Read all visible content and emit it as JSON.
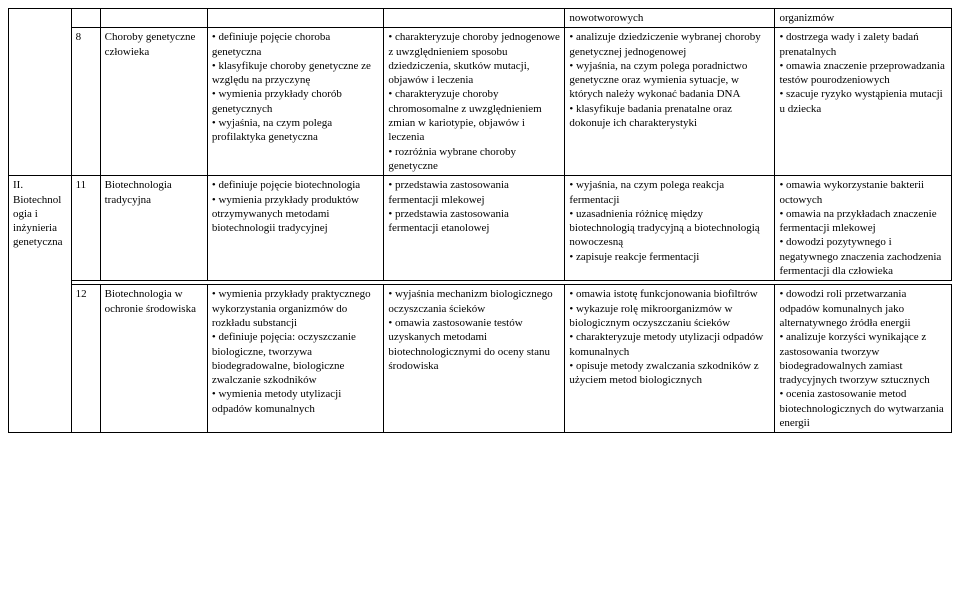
{
  "header": {
    "c3": "nowotworowych",
    "c4": "organizmów"
  },
  "row8": {
    "num": "8",
    "topic": "Choroby genetyczne człowieka",
    "c1": "• definiuje pojęcie choroba genetyczna\n• klasyfikuje choroby genetyczne ze względu na przyczynę\n• wymienia przykłady chorób genetycznych\n• wyjaśnia, na czym polega profilaktyka genetyczna",
    "c2": "• charakteryzuje choroby jednogenowe z uwzględnieniem sposobu dziedziczenia, skutków mutacji, objawów i leczenia\n• charakteryzuje choroby chromosomalne z uwzględnieniem zmian w kariotypie, objawów i leczenia\n• rozróżnia wybrane choroby genetyczne",
    "c3": "• analizuje dziedziczenie wybranej choroby genetycznej jednogenowej\n• wyjaśnia, na czym polega poradnictwo genetyczne oraz wymienia sytuacje, w których należy wykonać badania DNA\n• klasyfikuje badania prenatalne oraz dokonuje ich charakterystyki",
    "c4": "• dostrzega wady i zalety badań prenatalnych\n• omawia znaczenie przeprowadzania testów pourodzeniowych\n• szacuje ryzyko wystąpienia mutacji u dziecka"
  },
  "row11": {
    "section": "II. Biotechnologia i inżynieria genetyczna",
    "num": "11",
    "topic": "Biotechnologia tradycyjna",
    "c1": "• definiuje pojęcie biotechnologia\n• wymienia przykłady produktów otrzymywanych metodami biotechnologii tradycyjnej",
    "c2": "• przedstawia zastosowania fermentacji mlekowej\n• przedstawia zastosowania fermentacji etanolowej",
    "c3": "• wyjaśnia, na czym polega reakcja fermentacji\n• uzasadnienia różnicę między biotechnologią tradycyjną a biotechnologią nowoczesną\n• zapisuje reakcje fermentacji",
    "c4": "• omawia wykorzystanie bakterii octowych\n• omawia na przykładach znaczenie fermentacji mlekowej\n• dowodzi pozytywnego i negatywnego znaczenia zachodzenia fermentacji dla człowieka"
  },
  "row12": {
    "num": "12",
    "topic": "Biotechnologia w ochronie środowiska",
    "c1": "• wymienia przykłady praktycznego wykorzystania organizmów do rozkładu substancji\n• definiuje pojęcia: oczyszczanie biologiczne, tworzywa biodegradowalne, biologiczne zwalczanie szkodników\n• wymienia metody utylizacji odpadów komunalnych",
    "c2": "• wyjaśnia mechanizm biologicznego oczyszczania ścieków\n• omawia zastosowanie testów uzyskanych metodami biotechnologicznymi do oceny stanu środowiska",
    "c3": "• omawia istotę funkcjonowania biofiltrów\n• wykazuje rolę mikroorganizmów w biologicznym oczyszczaniu ścieków\n• charakteryzuje metody utylizacji odpadów komunalnych\n• opisuje metody zwalczania szkodników z użyciem metod biologicznych",
    "c4": "• dowodzi roli przetwarzania odpadów komunalnych jako alternatywnego źródła energii\n• analizuje korzyści wynikające z zastosowania tworzyw biodegradowalnych zamiast tradycyjnych tworzyw sztucznych\n• ocenia zastosowanie metod biotechnologicznych do wytwarzania energii"
  }
}
